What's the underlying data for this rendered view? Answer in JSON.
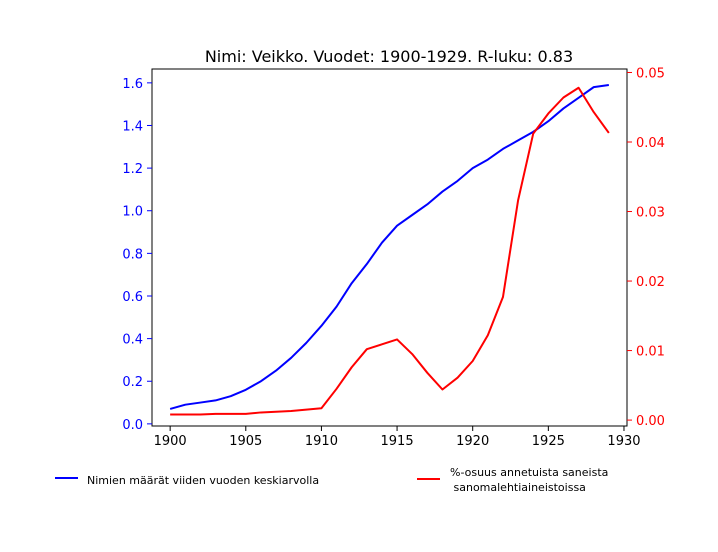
{
  "chart_data": {
    "type": "line",
    "title": "Nimi: Veikko. Vuodet: 1900-1929. R-luku: 0.83",
    "x": [
      1900,
      1901,
      1902,
      1903,
      1904,
      1905,
      1906,
      1907,
      1908,
      1909,
      1910,
      1911,
      1912,
      1913,
      1914,
      1915,
      1916,
      1917,
      1918,
      1919,
      1920,
      1921,
      1922,
      1923,
      1924,
      1925,
      1926,
      1927,
      1928,
      1929
    ],
    "xlim": [
      1898.8,
      1930.2
    ],
    "xticks": [
      "1900",
      "1905",
      "1910",
      "1915",
      "1920",
      "1925",
      "1930"
    ],
    "y_left": {
      "ylim": [
        -0.01,
        1.665
      ],
      "ticks": [
        "0.0",
        "0.2",
        "0.4",
        "0.6",
        "0.8",
        "1.0",
        "1.2",
        "1.4",
        "1.6"
      ],
      "color": "#0000ff"
    },
    "y_right": {
      "ylim": [
        -0.00085,
        0.0505
      ],
      "ticks": [
        "0.00",
        "0.01",
        "0.02",
        "0.03",
        "0.04",
        "0.05"
      ],
      "color": "#ff0000"
    },
    "series": [
      {
        "name": "Nimien määrät viiden vuoden keskiarvolla",
        "axis": "left",
        "color": "#0000ff",
        "values": [
          0.07,
          0.09,
          0.1,
          0.11,
          0.13,
          0.16,
          0.2,
          0.25,
          0.31,
          0.38,
          0.46,
          0.55,
          0.66,
          0.75,
          0.85,
          0.93,
          0.98,
          1.03,
          1.09,
          1.14,
          1.2,
          1.24,
          1.29,
          1.33,
          1.37,
          1.42,
          1.48,
          1.53,
          1.58,
          1.59
        ]
      },
      {
        "name": "%-osuus annetuista saneista\n sanomalehtiaineistoissa",
        "axis": "right",
        "color": "#ff0000",
        "values": [
          0.0008,
          0.0008,
          0.0008,
          0.0009,
          0.0009,
          0.0009,
          0.0011,
          0.0012,
          0.0013,
          0.0015,
          0.0017,
          0.0045,
          0.0076,
          0.0102,
          0.0109,
          0.0116,
          0.0095,
          0.0068,
          0.0044,
          0.0061,
          0.0085,
          0.0122,
          0.0177,
          0.0316,
          0.0412,
          0.0441,
          0.0464,
          0.0478,
          0.0443,
          0.0413
        ]
      }
    ],
    "legend_placement": "bottom",
    "grid": false
  },
  "legend": {
    "label_blue": "Nimien määrät viiden vuoden keskiarvolla",
    "label_red_line1": "%-osuus annetuista saneista",
    "label_red_line2": " sanomalehtiaineistoissa"
  }
}
